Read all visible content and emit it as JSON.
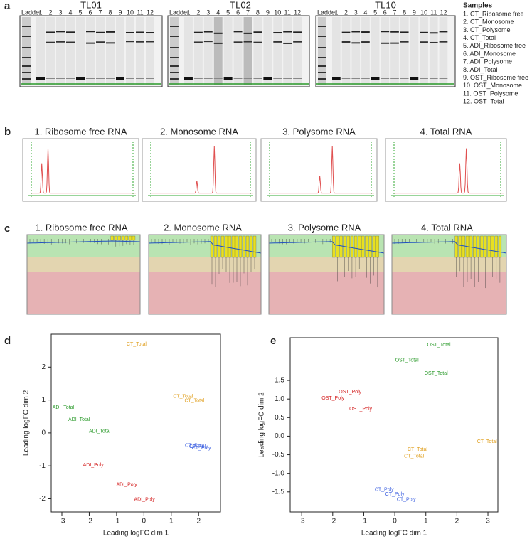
{
  "panel_labels": [
    "a",
    "b",
    "c",
    "d",
    "e"
  ],
  "gel": {
    "titles": [
      "TL01",
      "TL02",
      "TL10"
    ],
    "ladder": "Ladder",
    "lanes": [
      "1",
      "2",
      "3",
      "4",
      "5",
      "6",
      "7",
      "8",
      "9",
      "10",
      "11",
      "12"
    ],
    "samples_title": "Samples",
    "samples": [
      "1. CT_Ribosome free",
      "2. CT_Monosome",
      "3. CT_Polysome",
      "4. CT_Total",
      "5. ADI_Ribosome free",
      "6. ADI_Monosome",
      "7. ADI_Polysome",
      "8. ADI_Total",
      "9. OST_Ribosome free",
      "10. OST_Monosome",
      "11. OST_Polysome",
      "12. OST_Total"
    ]
  },
  "panel_b": {
    "titles": [
      "1. Ribosome free RNA",
      "2. Monosome RNA",
      "3. Polysome RNA",
      "4. Total RNA"
    ]
  },
  "panel_c": {
    "titles": [
      "1. Ribosome free RNA",
      "2. Monosome RNA",
      "3. Polysome RNA",
      "4. Total RNA"
    ]
  },
  "chart_data": [
    {
      "type": "scatter",
      "x_label": "Leading logFC dim 1",
      "y_label": "Leading logFC dim 2",
      "xlim": [
        -3.39,
        2.8
      ],
      "ylim": [
        -2.4,
        3.0
      ],
      "xticks": [
        -3,
        -2,
        -1,
        0,
        1,
        2
      ],
      "yticks": [
        -2,
        -1,
        0,
        1,
        2
      ],
      "series": [
        {
          "name": "CT_Total",
          "color": "#e0a020",
          "x": [
            -0.27,
            1.43,
            1.85
          ],
          "y": [
            2.69,
            1.11,
            0.98
          ]
        },
        {
          "name": "ADI_Total",
          "color": "#2a9a2a",
          "x": [
            -2.95,
            -2.37,
            -1.62
          ],
          "y": [
            0.77,
            0.4,
            0.05
          ]
        },
        {
          "name": "CT_Poly",
          "color": "#3a5ee0",
          "x": [
            1.85,
            2.0,
            2.1
          ],
          "y": [
            -0.38,
            -0.42,
            -0.46
          ]
        },
        {
          "name": "ADI_Poly",
          "color": "#d42020",
          "x": [
            -1.85,
            -0.63,
            0.02
          ],
          "y": [
            -0.98,
            -1.57,
            -2.02
          ]
        }
      ]
    },
    {
      "type": "scatter",
      "x_label": "Leading logFC dim 1",
      "y_label": "Leading logFC dim 2",
      "xlim": [
        -3.37,
        3.32
      ],
      "ylim": [
        -2.04,
        2.65
      ],
      "xticks": [
        -3,
        -2,
        -1,
        0,
        1,
        2,
        3
      ],
      "yticks": [
        1.5,
        {
          "value": 1,
          "label": "1.0"
        },
        0.5,
        {
          "value": 0,
          "label": "0.0"
        },
        -0.5,
        {
          "value": -1,
          "label": "-1.0"
        },
        -1.5
      ],
      "series": [
        {
          "name": "OST_Total",
          "color": "#2a9a2a",
          "x": [
            1.42,
            0.39,
            1.33
          ],
          "y": [
            2.46,
            2.04,
            1.69
          ]
        },
        {
          "name": "OST_Poly",
          "color": "#d42020",
          "x": [
            -1.44,
            -1.99,
            -1.1
          ],
          "y": [
            1.19,
            1.02,
            0.73
          ]
        },
        {
          "name": "CT_Total",
          "color": "#e0a020",
          "x": [
            2.97,
            0.73,
            0.62
          ],
          "y": [
            -0.15,
            -0.36,
            -0.54
          ]
        },
        {
          "name": "CT_Poly",
          "color": "#3a5ee0",
          "x": [
            -0.34,
            0.0,
            0.37
          ],
          "y": [
            -1.44,
            -1.56,
            -1.71
          ]
        }
      ]
    }
  ]
}
